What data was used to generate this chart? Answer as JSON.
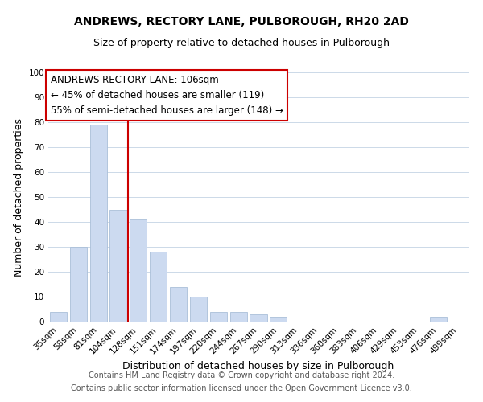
{
  "title": "ANDREWS, RECTORY LANE, PULBOROUGH, RH20 2AD",
  "subtitle": "Size of property relative to detached houses in Pulborough",
  "xlabel": "Distribution of detached houses by size in Pulborough",
  "ylabel": "Number of detached properties",
  "bar_labels": [
    "35sqm",
    "58sqm",
    "81sqm",
    "104sqm",
    "128sqm",
    "151sqm",
    "174sqm",
    "197sqm",
    "220sqm",
    "244sqm",
    "267sqm",
    "290sqm",
    "313sqm",
    "336sqm",
    "360sqm",
    "383sqm",
    "406sqm",
    "429sqm",
    "453sqm",
    "476sqm",
    "499sqm"
  ],
  "bar_values": [
    4,
    30,
    79,
    45,
    41,
    28,
    14,
    10,
    4,
    4,
    3,
    2,
    0,
    0,
    0,
    0,
    0,
    0,
    0,
    2,
    0
  ],
  "bar_color": "#ccdaf0",
  "bar_edge_color": "#aabfd8",
  "vline_index": 3,
  "vline_color": "#cc0000",
  "ylim": [
    0,
    100
  ],
  "yticks": [
    0,
    10,
    20,
    30,
    40,
    50,
    60,
    70,
    80,
    90,
    100
  ],
  "annotation_title": "ANDREWS RECTORY LANE: 106sqm",
  "annotation_line1": "← 45% of detached houses are smaller (119)",
  "annotation_line2": "55% of semi-detached houses are larger (148) →",
  "annotation_box_color": "#ffffff",
  "annotation_box_edge": "#cc0000",
  "footer_line1": "Contains HM Land Registry data © Crown copyright and database right 2024.",
  "footer_line2": "Contains public sector information licensed under the Open Government Licence v3.0.",
  "title_fontsize": 10,
  "subtitle_fontsize": 9,
  "axis_label_fontsize": 9,
  "tick_fontsize": 7.5,
  "annotation_fontsize": 8.5,
  "footer_fontsize": 7,
  "background_color": "#ffffff",
  "grid_color": "#ccd9e8"
}
